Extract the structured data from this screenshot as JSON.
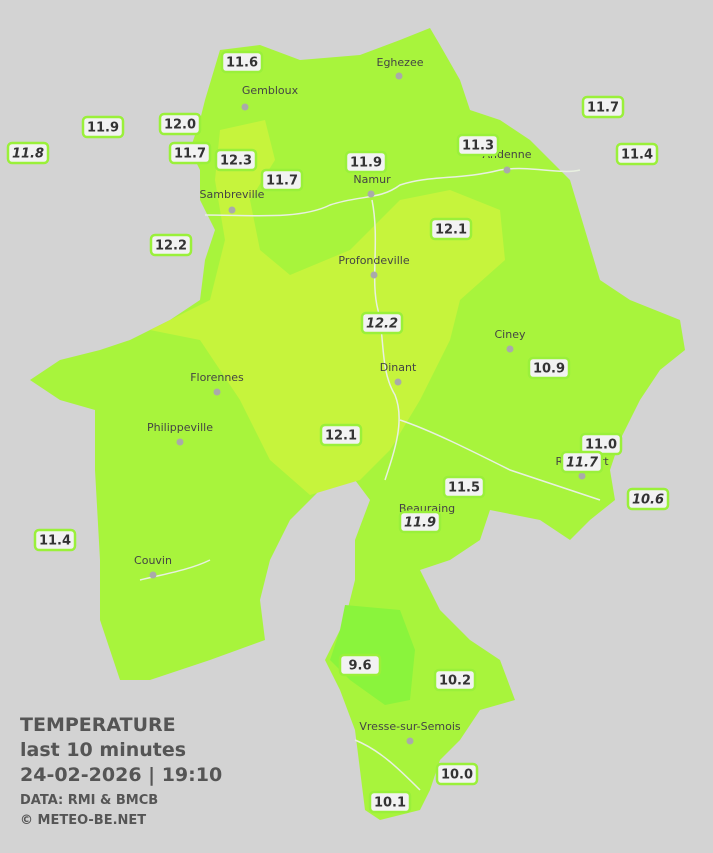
{
  "legend": {
    "title": "TEMPERATURE",
    "period": "last 10 minutes",
    "datetime": "24-02-2026  |  19:10",
    "source": "DATA: RMI & BMCB",
    "copyright": "© METEO-BE.NET"
  },
  "towns": [
    "Gembloux",
    "Eghezee",
    "Andenne",
    "Namur",
    "Sambreville",
    "Profondeville",
    "Ciney",
    "Dinant",
    "Florennes",
    "Philippeville",
    "Rochefort",
    "Beauraing",
    "Couvin",
    "Vresse-sur-Semois"
  ],
  "stations": [
    "11.6",
    "11.9",
    "12.0",
    "11.8",
    "11.7",
    "12.3",
    "11.7",
    "11.9",
    "11.3",
    "11.7",
    "11.4",
    "12.1",
    "12.2",
    "12.2",
    "10.9",
    "12.1",
    "11.0",
    "11.7",
    "11.5",
    "10.6",
    "11.9",
    "11.4",
    "9.6",
    "10.2",
    "10.0",
    "10.1"
  ]
}
